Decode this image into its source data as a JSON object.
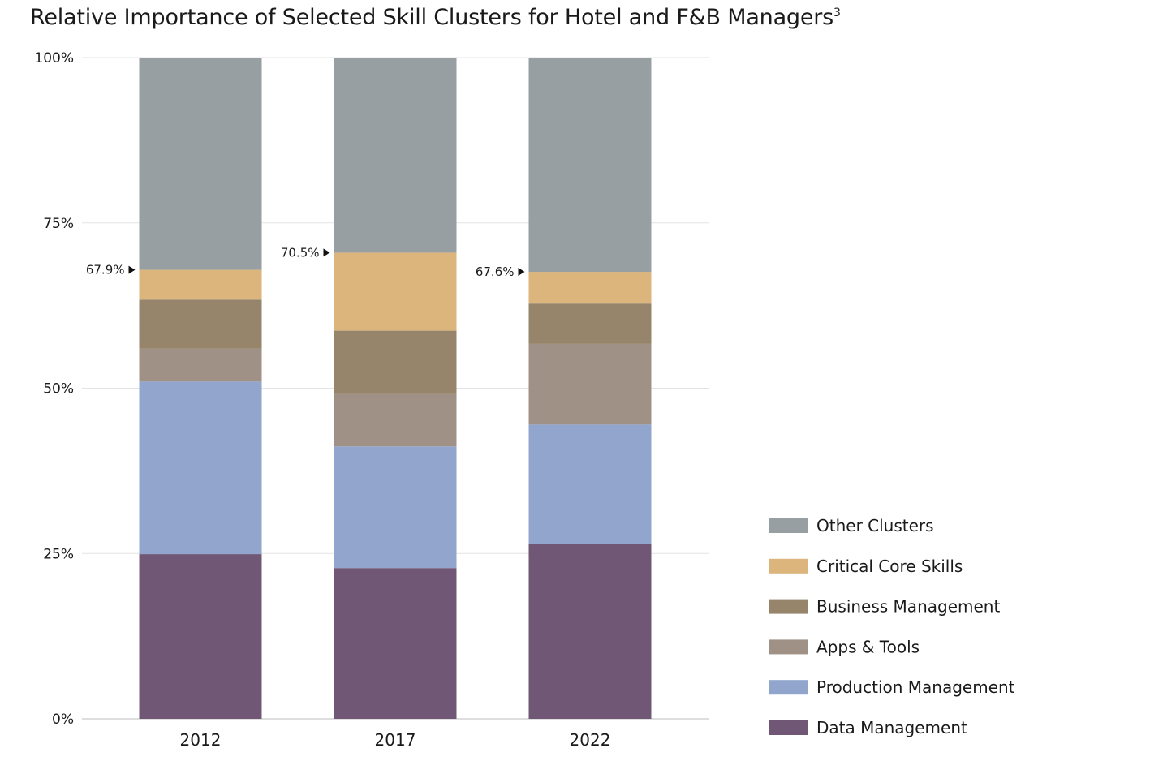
{
  "chart_data": {
    "type": "bar",
    "stacked": true,
    "title": "Relative Importance of Selected Skill Clusters for Hotel and F&B Managers",
    "title_superscript": "3",
    "xlabel": "",
    "ylabel": "",
    "categories": [
      "2012",
      "2017",
      "2022"
    ],
    "ylim": [
      0,
      100
    ],
    "yticks": [
      "0%",
      "25%",
      "50%",
      "75%",
      "100%"
    ],
    "ytick_values": [
      0,
      25,
      50,
      75,
      100
    ],
    "grid": true,
    "legend_position": "right-bottom",
    "series": [
      {
        "name": "Data Management",
        "color": "#715776",
        "values": [
          24.9,
          22.8,
          26.4
        ]
      },
      {
        "name": "Production Management",
        "color": "#91a5cd",
        "values": [
          26.1,
          18.4,
          18.1
        ]
      },
      {
        "name": "Apps & Tools",
        "color": "#a09186",
        "values": [
          5.0,
          7.9,
          12.2
        ]
      },
      {
        "name": "Business Management",
        "color": "#96846b",
        "values": [
          7.4,
          9.6,
          6.1
        ]
      },
      {
        "name": "Critical Core Skills",
        "color": "#dbb57c",
        "values": [
          4.5,
          11.8,
          4.8
        ]
      },
      {
        "name": "Other Clusters",
        "color": "#989fa2",
        "values": [
          32.1,
          29.5,
          32.4
        ]
      }
    ],
    "annotations": [
      {
        "category": "2012",
        "value": 67.9,
        "label": "67.9%"
      },
      {
        "category": "2017",
        "value": 70.5,
        "label": "70.5%"
      },
      {
        "category": "2022",
        "value": 67.6,
        "label": "67.6%"
      }
    ],
    "legend_order": [
      "Other Clusters",
      "Critical Core Skills",
      "Business Management",
      "Apps & Tools",
      "Production Management",
      "Data Management"
    ]
  }
}
